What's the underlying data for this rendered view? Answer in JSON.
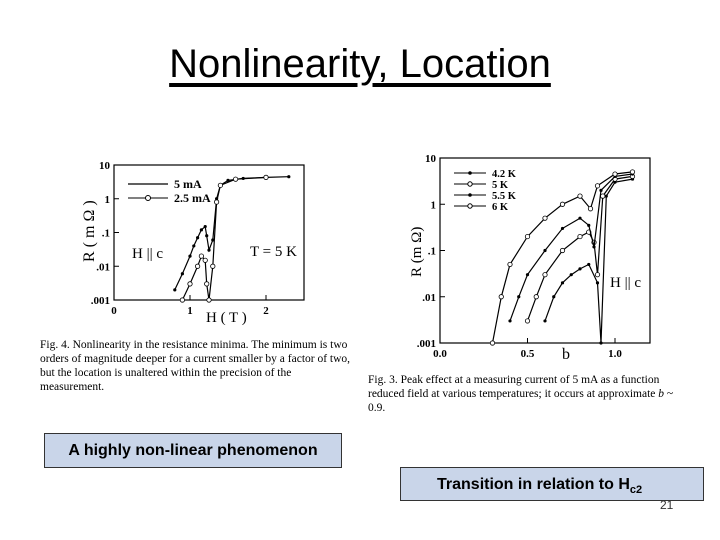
{
  "slide": {
    "title": "Nonlinearity, Location",
    "page_number": "21"
  },
  "fig4": {
    "y_axis_label": "R ( m Ω )",
    "y_ticks": [
      "10",
      "1",
      ".1",
      ".01",
      ".001"
    ],
    "x_ticks": [
      "0",
      "1",
      "2"
    ],
    "x_axis_label": "H ( T )",
    "legend": [
      "5 mA",
      "2.5 mA"
    ],
    "field_annotation": "H || c",
    "temp_annotation": "T = 5 K",
    "caption": "Fig. 4. Nonlinearity in the resistance minima. The minimum is two orders of magnitude deeper for a current smaller by a factor of two, but the location is unaltered within the precision of the measurement."
  },
  "fig3": {
    "y_axis_label": "R (m Ω)",
    "y_ticks": [
      "10",
      "1",
      ".1",
      ".01",
      ".001"
    ],
    "x_ticks": [
      "0.0",
      "0.5",
      "1.0"
    ],
    "x_axis_label": "b",
    "legend": [
      "4.2 K",
      "5 K",
      "5.5 K",
      "6 K"
    ],
    "field_annotation": "H || c",
    "caption_parts": {
      "text": "Fig. 3. Peak effect at a measuring current of 5 mA as a function reduced field at various temperatures; it occurs at approximate ",
      "variable": "b",
      "tail": " ~ 0.9."
    }
  },
  "labels": {
    "box_left": "A highly non-linear phenomenon",
    "box_right_main": "Transition in relation to H",
    "box_right_sub": "c2"
  },
  "chart_data": [
    {
      "type": "line",
      "title": "",
      "xlabel": "H ( T )",
      "ylabel": "R ( m Ω )",
      "xlim": [
        0,
        2.5
      ],
      "ylim": [
        0.001,
        10
      ],
      "y_scale": "log",
      "legend_position": "top-left",
      "series": [
        {
          "name": "5 mA",
          "x": [
            0.8,
            0.9,
            1.0,
            1.05,
            1.1,
            1.15,
            1.2,
            1.22,
            1.25,
            1.3,
            1.35,
            1.4,
            1.5,
            1.7,
            2.0,
            2.3
          ],
          "y": [
            0.002,
            0.006,
            0.02,
            0.04,
            0.07,
            0.12,
            0.15,
            0.08,
            0.03,
            0.06,
            1.0,
            2.5,
            3.5,
            4.0,
            4.3,
            4.5
          ]
        },
        {
          "name": "2.5 mA",
          "x": [
            0.9,
            1.0,
            1.1,
            1.15,
            1.2,
            1.22,
            1.25,
            1.3,
            1.35,
            1.4,
            1.6,
            2.0
          ],
          "y": [
            0.001,
            0.003,
            0.01,
            0.02,
            0.015,
            0.003,
            0.001,
            0.01,
            0.8,
            2.5,
            3.8,
            4.3
          ]
        }
      ]
    },
    {
      "type": "line",
      "title": "",
      "xlabel": "b",
      "ylabel": "R (m Ω)",
      "xlim": [
        0.0,
        1.2
      ],
      "ylim": [
        0.001,
        10
      ],
      "y_scale": "log",
      "legend_position": "top-left",
      "series": [
        {
          "name": "4.2 K",
          "x": [
            0.6,
            0.65,
            0.7,
            0.75,
            0.8,
            0.85,
            0.9,
            0.92,
            0.95,
            1.0,
            1.1
          ],
          "y": [
            0.003,
            0.01,
            0.02,
            0.03,
            0.04,
            0.05,
            0.02,
            0.001,
            1.5,
            3.0,
            3.5
          ]
        },
        {
          "name": "5 K",
          "x": [
            0.5,
            0.55,
            0.6,
            0.7,
            0.8,
            0.85,
            0.88,
            0.9,
            0.93,
            1.0,
            1.1
          ],
          "y": [
            0.003,
            0.01,
            0.03,
            0.1,
            0.2,
            0.25,
            0.15,
            0.03,
            1.5,
            3.5,
            4.0
          ]
        },
        {
          "name": "5.5 K",
          "x": [
            0.4,
            0.45,
            0.5,
            0.6,
            0.7,
            0.8,
            0.85,
            0.88,
            0.92,
            1.0,
            1.1
          ],
          "y": [
            0.003,
            0.01,
            0.03,
            0.1,
            0.3,
            0.5,
            0.35,
            0.12,
            2.0,
            4.0,
            4.5
          ]
        },
        {
          "name": "6 K",
          "x": [
            0.3,
            0.35,
            0.4,
            0.5,
            0.6,
            0.7,
            0.8,
            0.86,
            0.9,
            1.0,
            1.1
          ],
          "y": [
            0.001,
            0.01,
            0.05,
            0.2,
            0.5,
            1.0,
            1.5,
            0.8,
            2.5,
            4.5,
            5.0
          ]
        }
      ]
    }
  ]
}
